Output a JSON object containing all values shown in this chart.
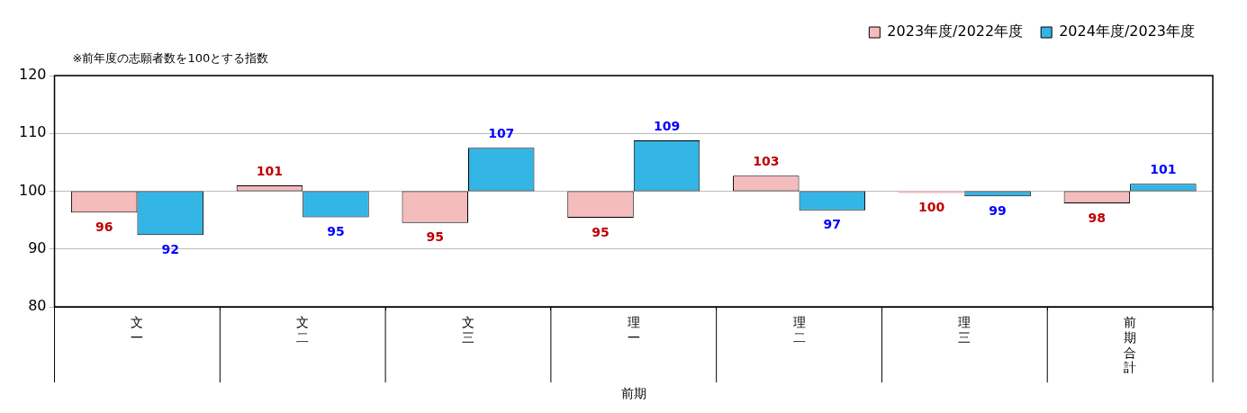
{
  "chart_data": {
    "type": "bar",
    "categories": [
      "文一",
      "文二",
      "文三",
      "理一",
      "理二",
      "理三",
      "前期合計"
    ],
    "xlabel": "前期",
    "annotations": [
      "※前年度の志願者数を100とする指数"
    ],
    "series": [
      {
        "name": "2023年度/2022年度",
        "color": "#f4bcbc",
        "base": [
          100,
          100,
          100,
          100,
          100,
          100,
          100
        ],
        "values": [
          -3.7,
          1.0,
          -5.5,
          -4.6,
          2.7,
          -0.3,
          -2.1
        ],
        "value_labels": [
          "96",
          "101",
          "95",
          "95",
          "103",
          "100",
          "98"
        ]
      },
      {
        "name": "2024年度/2023年度",
        "color": "#33b5e5",
        "base": [
          100,
          100,
          100,
          100,
          100,
          100,
          100
        ],
        "values": [
          -7.6,
          -4.5,
          7.5,
          8.8,
          -3.3,
          -0.9,
          1.3
        ],
        "value_labels": [
          "92",
          "95",
          "107",
          "109",
          "97",
          "99",
          "101"
        ]
      }
    ],
    "ylim": [
      80,
      120
    ],
    "yticks": [
      80,
      90,
      100,
      110,
      120
    ],
    "grid": "y",
    "legend": "top right"
  }
}
